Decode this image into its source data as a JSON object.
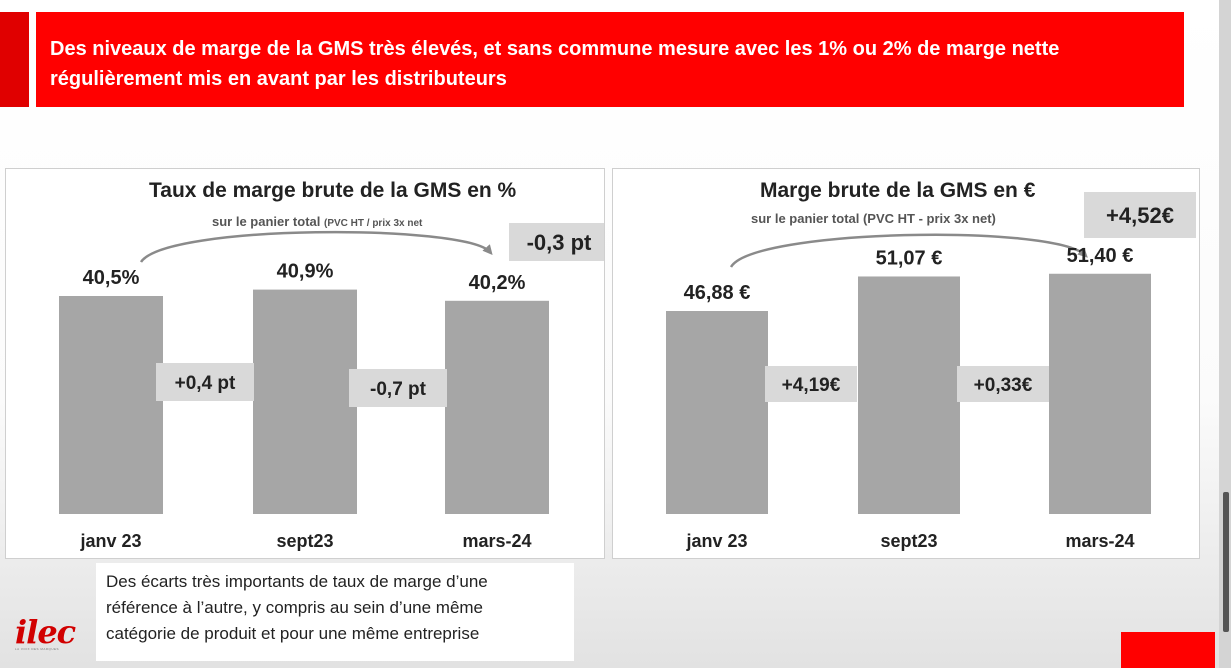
{
  "banner": {
    "title": "Des niveaux de marge de la GMS très élevés, et sans commune mesure avec les 1% ou 2% de marge nette régulièrement mis en avant par les distributeurs"
  },
  "charts": [
    {
      "title": "Taux de marge brute de la GMS en %",
      "subtitle_main": "sur le panier total ",
      "subtitle_small": "(PVC HT / prix 3x net",
      "total_change": "-0,3 pt",
      "diffs": [
        "+0,4 pt",
        "-0,7 pt"
      ]
    },
    {
      "title": "Marge brute de la GMS en €",
      "subtitle_main": "sur le panier total (PVC HT - prix 3x net)",
      "subtitle_small": "",
      "total_change": "+4,52€",
      "diffs": [
        "+4,19€",
        "+0,33€"
      ]
    }
  ],
  "chart_data": [
    {
      "type": "bar",
      "title": "Taux de marge brute de la GMS en %",
      "categories": [
        "janv 23",
        "sept23",
        "mars-24"
      ],
      "values": [
        40.5,
        40.9,
        40.2
      ],
      "value_labels": [
        "40,5%",
        "40,9%",
        "40,2%"
      ],
      "unit": "%",
      "color": "#a6a6a6"
    },
    {
      "type": "bar",
      "title": "Marge brute de la GMS en €",
      "categories": [
        "janv 23",
        "sept23",
        "mars-24"
      ],
      "values": [
        46.88,
        51.07,
        51.4
      ],
      "value_labels": [
        "46,88 €",
        "51,07 €",
        "51,40 €"
      ],
      "unit": "€",
      "color": "#a6a6a6"
    }
  ],
  "note": {
    "lines": [
      "Des écarts très importants de taux de marge d’une",
      "référence à l’autre, y compris au sein d’une même",
      "catégorie de produit et pour une même entreprise"
    ]
  },
  "logo": {
    "text": "ilec",
    "tagline": "LA VOIX DES MARQUES"
  },
  "colors": {
    "banner": "#ff0000",
    "bar": "#a6a6a6",
    "label_box": "#d9d9d9",
    "text": "#222222"
  }
}
